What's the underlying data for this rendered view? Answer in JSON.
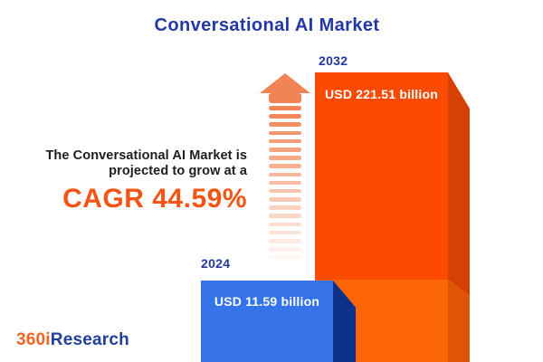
{
  "title": "Conversational AI Market",
  "headline": {
    "line1": "The Conversational AI Market is",
    "line2": "projected to grow at a",
    "cagr": "CAGR 44.59%"
  },
  "chart_data": {
    "type": "bar",
    "categories": [
      "2024",
      "2032"
    ],
    "values": [
      11.59,
      221.51
    ],
    "unit": "USD billion",
    "value_labels": [
      "USD 11.59 billion",
      "USD 221.51 billion"
    ],
    "title": "Conversational AI Market",
    "annotations": [
      "The Conversational AI Market is projected to grow at a CAGR 44.59%"
    ],
    "bar_colors": [
      "#3574E8",
      "#FB4A04"
    ],
    "style": "3d-illustrative, bar heights not to scale, growth arrow between bars"
  },
  "bars": {
    "b2024": {
      "year": "2024",
      "value_label": "USD 11.59 billion"
    },
    "b2032": {
      "year": "2032",
      "value_label": "USD 221.51 billion"
    }
  },
  "arrow": {
    "dash_count": 19,
    "color": "#F28354",
    "direction": "up"
  },
  "logo": {
    "part1": "360i",
    "part2": "Research"
  },
  "colors": {
    "title_blue": "#2438A3",
    "cagr_orange": "#F45414",
    "bar_2024_front": "#3574E8",
    "bar_2024_side": "#0B3288",
    "bar_2032_front_top": "#FB4A04",
    "bar_2032_front_bottom": "#FC6503",
    "bar_2032_side_top": "#D64103",
    "bar_2032_side_bottom": "#DE5505",
    "arrow_orange": "#F28354",
    "logo_orange": "#F26621",
    "logo_blue": "#21409A",
    "text_dark": "#1E1E21"
  }
}
